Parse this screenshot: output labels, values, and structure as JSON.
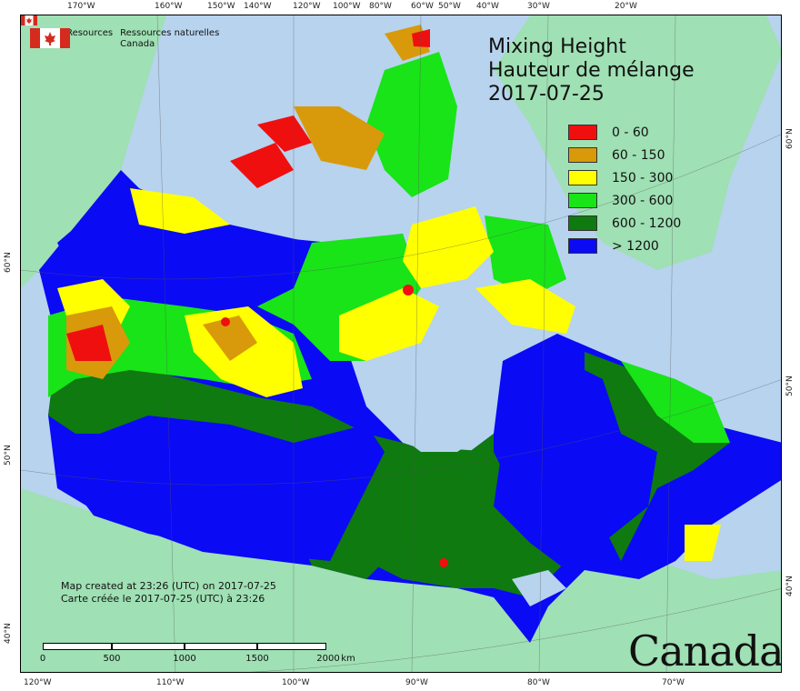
{
  "map": {
    "title_en": "Mixing Height",
    "title_fr": "Hauteur de mélange",
    "date": "2017-07-25",
    "agency_en": [
      "Natural Resources",
      "Canada"
    ],
    "agency_fr": [
      "Ressources naturelles",
      "Canada"
    ],
    "credit_en": "Map created at 23:26 (UTC) on 2017-07-25",
    "credit_fr": "Carte créée le 2017-07-25 (UTC) à 23:26",
    "wordmark": "Canada",
    "colors": {
      "ocean": "#b7d3ee",
      "land_outside": "#9fe0b4",
      "c0": "#f00f0f",
      "c1": "#d89a0a",
      "c2": "#ffff00",
      "c3": "#18e418",
      "c4": "#0f7a0f",
      "c5": "#0a0af5"
    }
  },
  "legend": {
    "items": [
      {
        "label": "0 - 60",
        "color": "#f00f0f"
      },
      {
        "label": "60 - 150",
        "color": "#d89a0a"
      },
      {
        "label": "150 - 300",
        "color": "#ffff00"
      },
      {
        "label": "300 - 600",
        "color": "#18e418"
      },
      {
        "label": "600 - 1200",
        "color": "#0f7a0f"
      },
      {
        "label": "> 1200",
        "color": "#0a0af5"
      }
    ]
  },
  "graticule": {
    "top": [
      "170°W",
      "160°W",
      "150°W",
      "140°W",
      "120°W",
      "100°W",
      "80°W",
      "60°W",
      "50°W",
      "40°W",
      "30°W",
      "20°W"
    ],
    "bottom": [
      "120°W",
      "110°W",
      "100°W",
      "90°W",
      "80°W",
      "70°W"
    ],
    "left": [
      "60°N",
      "50°N",
      "40°N"
    ],
    "right": [
      "60°N",
      "50°N",
      "40°N"
    ]
  },
  "scale_bar": {
    "labels": [
      "0",
      "500",
      "1000",
      "1500",
      "2000"
    ],
    "unit": "km"
  }
}
